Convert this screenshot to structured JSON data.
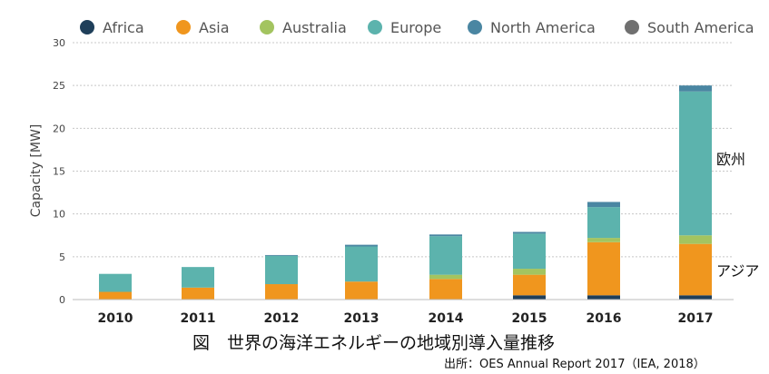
{
  "chart_data": {
    "type": "bar",
    "stacked": true,
    "categories": [
      "2010",
      "2011",
      "2012",
      "2013",
      "2014",
      "2015",
      "2016",
      "2017"
    ],
    "series": [
      {
        "name": "Africa",
        "color": "#1f3f5a",
        "values": [
          0,
          0,
          0,
          0,
          0,
          0.5,
          0.5,
          0.5
        ]
      },
      {
        "name": "Asia",
        "color": "#f0961e",
        "values": [
          0.9,
          1.4,
          1.8,
          2.1,
          2.4,
          2.4,
          6.2,
          6.0
        ]
      },
      {
        "name": "Australia",
        "color": "#a3c460",
        "values": [
          0,
          0,
          0,
          0,
          0.5,
          0.7,
          0.5,
          1.0
        ]
      },
      {
        "name": "Europe",
        "color": "#5cb3ad",
        "values": [
          2.1,
          2.4,
          3.3,
          4.1,
          4.5,
          4.1,
          3.6,
          16.8
        ]
      },
      {
        "name": "North America",
        "color": "#4a86a2",
        "values": [
          0,
          0,
          0.1,
          0.2,
          0.2,
          0.2,
          0.6,
          0.7
        ]
      },
      {
        "name": "South America",
        "color": "#707070",
        "values": [
          0,
          0,
          0,
          0,
          0,
          0,
          0,
          0
        ]
      }
    ],
    "ylabel": "Capacity [MW]",
    "ylim": [
      0,
      30
    ],
    "yticks": [
      0,
      5,
      10,
      15,
      20,
      25,
      30
    ],
    "grid": true,
    "legend_position": "top",
    "annotations": {
      "europe": "欧州",
      "asia": "アジア"
    }
  },
  "caption": "図　世界の海洋エネルギーの地域別導入量推移",
  "source": "出所：OES Annual Report 2017（IEA, 2018）"
}
